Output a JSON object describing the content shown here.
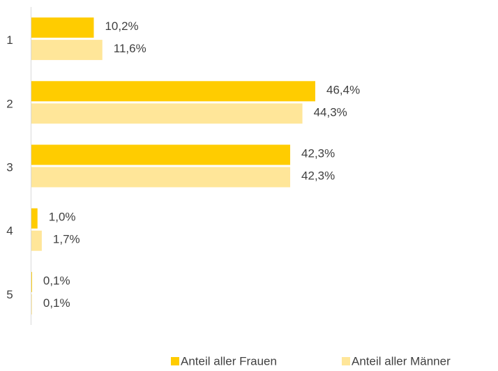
{
  "chart_data": {
    "type": "bar",
    "orientation": "horizontal",
    "categories": [
      "1",
      "2",
      "3",
      "4",
      "5"
    ],
    "series": [
      {
        "name": "Anteil aller Frauen",
        "color": "#FFCC00",
        "values": [
          10.2,
          46.4,
          42.3,
          1.0,
          0.1
        ],
        "value_labels": [
          "10,2%",
          "46,4%",
          "42,3%",
          "1,0%",
          "0,1%"
        ]
      },
      {
        "name": "Anteil aller Männer",
        "color": "#FFE699",
        "values": [
          11.6,
          44.3,
          42.3,
          1.7,
          0.1
        ],
        "value_labels": [
          "11,6%",
          "44,3%",
          "42,3%",
          "1,7%",
          "0,1%"
        ]
      }
    ],
    "legend": "bottom"
  }
}
